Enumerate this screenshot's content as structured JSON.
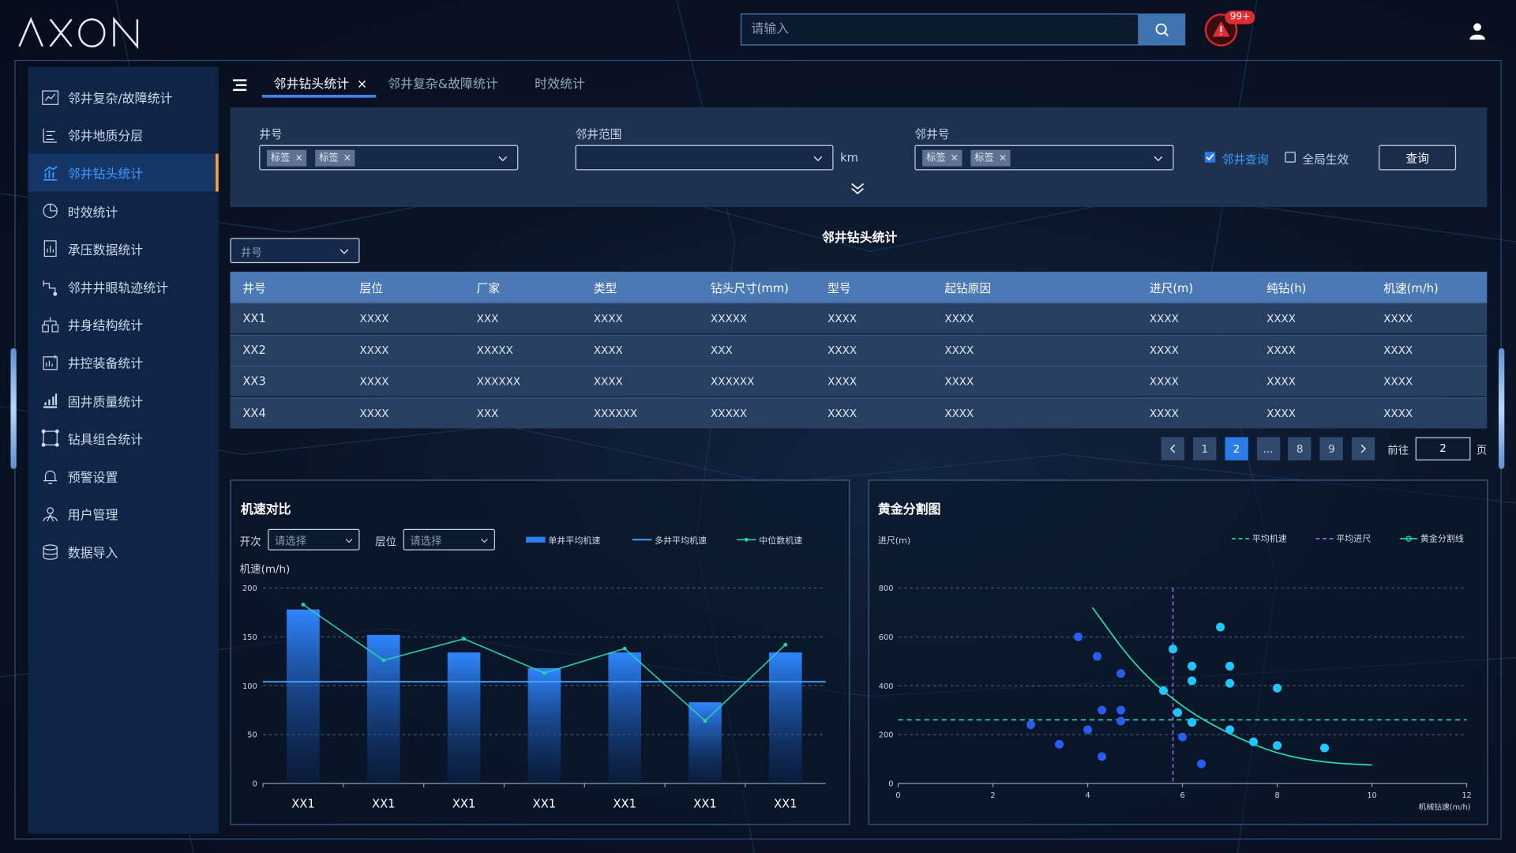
{
  "header": {
    "logo": "AXON",
    "search_placeholder": "请输入",
    "alarm_count": "99+"
  },
  "sidebar": {
    "items": [
      {
        "label": "邻井复杂/故障统计",
        "icon": "report-icon"
      },
      {
        "label": "邻井地质分层",
        "icon": "layers-icon"
      },
      {
        "label": "邻井钻头统计",
        "icon": "bar-chart-icon",
        "active": true
      },
      {
        "label": "时效统计",
        "icon": "clock-chart-icon"
      },
      {
        "label": "承压数据统计",
        "icon": "document-chart-icon"
      },
      {
        "label": "邻井井眼轨迹统计",
        "icon": "trajectory-icon"
      },
      {
        "label": "井身结构统计",
        "icon": "structure-icon"
      },
      {
        "label": "井控装备统计",
        "icon": "equipment-icon"
      },
      {
        "label": "固井质量统计",
        "icon": "quality-icon"
      },
      {
        "label": "钻具组合统计",
        "icon": "assembly-icon"
      },
      {
        "label": "预警设置",
        "icon": "bell-icon"
      },
      {
        "label": "用户管理",
        "icon": "users-icon"
      },
      {
        "label": "数据导入",
        "icon": "database-icon"
      }
    ]
  },
  "tabs": [
    {
      "label": "邻井钻头统计",
      "active": true,
      "closable": true
    },
    {
      "label": "邻井复杂&故障统计"
    },
    {
      "label": "时效统计"
    }
  ],
  "filter": {
    "well_label": "井号",
    "well_tags": [
      "标签",
      "标签"
    ],
    "range_label": "邻井范围",
    "range_unit": "km",
    "adj_label": "邻井号",
    "adj_tags": [
      "标签",
      "标签"
    ],
    "adj_query_label": "邻井查询",
    "adj_query_checked": true,
    "global_label": "全局生效",
    "global_checked": false,
    "query_button": "查询"
  },
  "table": {
    "title": "邻井钻头统计",
    "well_select_placeholder": "井号",
    "columns": [
      "井号",
      "层位",
      "厂家",
      "类型",
      "钻头尺寸(mm)",
      "型号",
      "起钻原因",
      "进尺(m)",
      "纯钻(h)",
      "机速(m/h)"
    ],
    "rows": [
      [
        "XX1",
        "XXXX",
        "XXX",
        "XXXX",
        "XXXXX",
        "XXXX",
        "XXXX",
        "XXXX",
        "XXXX",
        "XXXX"
      ],
      [
        "XX2",
        "XXXX",
        "XXXXX",
        "XXXX",
        "XXX",
        "XXXX",
        "XXXX",
        "XXXX",
        "XXXX",
        "XXXX"
      ],
      [
        "XX3",
        "XXXX",
        "XXXXXX",
        "XXXX",
        "XXXXXX",
        "XXXX",
        "XXXX",
        "XXXX",
        "XXXX",
        "XXXX"
      ],
      [
        "XX4",
        "XXXX",
        "XXX",
        "XXXXXX",
        "XXXXX",
        "XXXX",
        "XXXX",
        "XXXX",
        "XXXX",
        "XXXX"
      ]
    ]
  },
  "pagination": {
    "pages": [
      "1",
      "2",
      "...",
      "8",
      "9"
    ],
    "current": "2",
    "goto_label": "前往",
    "goto_value": "2",
    "page_suffix": "页"
  },
  "speed_chart": {
    "title": "机速对比",
    "kaici_label": "开次",
    "kaici_placeholder": "请选择",
    "cengwei_label": "层位",
    "cengwei_placeholder": "请选择"
  },
  "golden_chart": {
    "title": "黄金分割图"
  },
  "chart_data": [
    {
      "type": "bar",
      "categories": [
        "XX1",
        "XX1",
        "XX1",
        "XX1",
        "XX1",
        "XX1",
        "XX1"
      ],
      "series": [
        {
          "name": "单井平均机速",
          "kind": "bar",
          "values": [
            178,
            152,
            134,
            118,
            134,
            83,
            134
          ]
        },
        {
          "name": "多井平均机速",
          "kind": "hline",
          "value": 104
        },
        {
          "name": "中位数机速",
          "kind": "line",
          "values": [
            183,
            126,
            148,
            113,
            138,
            64,
            142
          ]
        }
      ],
      "ylabel": "机速(m/h)",
      "ylim": [
        0,
        200
      ],
      "yticks": [
        0,
        50,
        100,
        150,
        200
      ],
      "colors": {
        "bar": "#2f7ef0",
        "line": "#26d3a6",
        "hline": "#4aa3ff"
      }
    },
    {
      "type": "scatter",
      "ylabel": "进尺(m)",
      "xlabel": "机械钻速(m/h)",
      "xlim": [
        0,
        12
      ],
      "ylim": [
        0,
        800
      ],
      "xticks": [
        0,
        2,
        4,
        6,
        8,
        10,
        12
      ],
      "yticks": [
        0,
        200,
        400,
        600,
        800
      ],
      "legend": [
        "平均机速",
        "平均进尺",
        "黄金分割线"
      ],
      "avg_speed": 5.8,
      "avg_footage": 260,
      "points_dark": [
        [
          3.8,
          600
        ],
        [
          4.2,
          520
        ],
        [
          4.7,
          450
        ],
        [
          4.3,
          300
        ],
        [
          4.7,
          300
        ],
        [
          4.7,
          255
        ],
        [
          4.0,
          220
        ],
        [
          2.8,
          240
        ],
        [
          3.4,
          160
        ],
        [
          4.3,
          110
        ],
        [
          6.0,
          190
        ],
        [
          6.4,
          80
        ]
      ],
      "points_light": [
        [
          5.8,
          550
        ],
        [
          6.2,
          480
        ],
        [
          5.6,
          380
        ],
        [
          6.2,
          420
        ],
        [
          6.8,
          640
        ],
        [
          7.0,
          480
        ],
        [
          7.0,
          410
        ],
        [
          6.2,
          250
        ],
        [
          5.9,
          290
        ],
        [
          7.0,
          220
        ],
        [
          7.5,
          170
        ],
        [
          8.0,
          390
        ],
        [
          8.0,
          155
        ],
        [
          9.0,
          145
        ]
      ],
      "curve": [
        [
          4.1,
          720
        ],
        [
          5,
          480
        ],
        [
          6,
          310
        ],
        [
          7,
          200
        ],
        [
          8,
          120
        ],
        [
          9,
          85
        ],
        [
          10,
          75
        ]
      ],
      "colors": {
        "dark": "#2a5cf0",
        "light": "#1ec8ff",
        "curve": "#25e0b0",
        "avg_speed": "#a26cf0",
        "avg_footage": "#25e0b0"
      }
    }
  ]
}
